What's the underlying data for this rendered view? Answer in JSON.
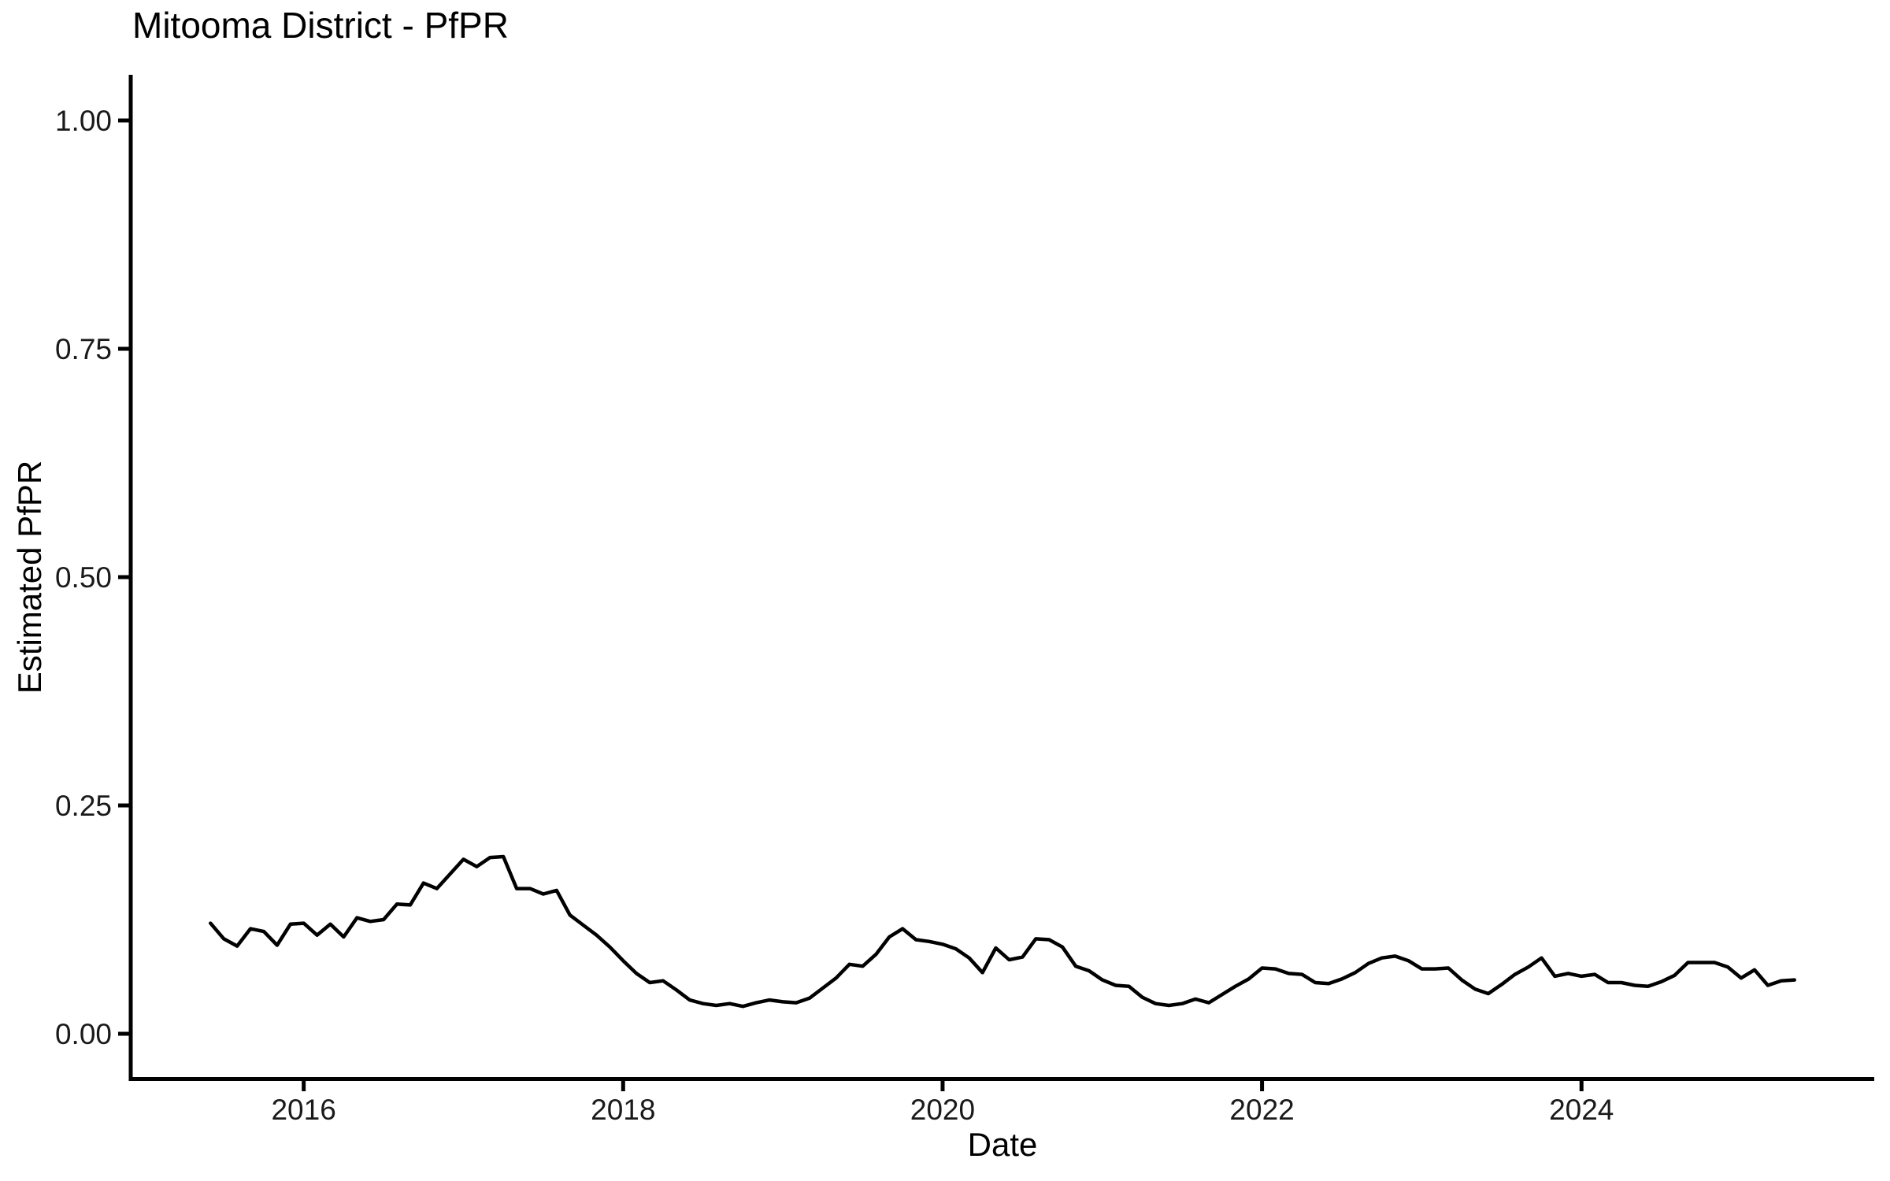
{
  "page": {
    "background": "#ffffff"
  },
  "chart_data": {
    "type": "line",
    "title": "Mitooma District - PfPR",
    "xlabel": "Date",
    "ylabel": "Estimated PfPR",
    "grid": false,
    "legend": false,
    "line_color": "#000000",
    "axis_color": "#000000",
    "x_range_years": [
      2014.917,
      2025.833
    ],
    "y_range": [
      -0.05,
      1.05
    ],
    "ylim": [
      0.0,
      1.0
    ],
    "x_tick_years": [
      2016,
      2018,
      2020,
      2022,
      2024
    ],
    "x_tick_labels": [
      "2016",
      "2018",
      "2020",
      "2022",
      "2024"
    ],
    "y_tick_values": [
      0.0,
      0.25,
      0.5,
      0.75,
      1.0
    ],
    "y_tick_labels": [
      "0.00",
      "0.25",
      "0.50",
      "0.75",
      "1.00"
    ],
    "series": [
      {
        "name": "Estimated PfPR",
        "dates": [
          "2015-06",
          "2015-07",
          "2015-08",
          "2015-09",
          "2015-10",
          "2015-11",
          "2015-12",
          "2016-01",
          "2016-02",
          "2016-03",
          "2016-04",
          "2016-05",
          "2016-06",
          "2016-07",
          "2016-08",
          "2016-09",
          "2016-10",
          "2016-11",
          "2016-12",
          "2017-01",
          "2017-02",
          "2017-03",
          "2017-04",
          "2017-05",
          "2017-06",
          "2017-07",
          "2017-08",
          "2017-09",
          "2017-10",
          "2017-11",
          "2017-12",
          "2018-01",
          "2018-02",
          "2018-03",
          "2018-04",
          "2018-05",
          "2018-06",
          "2018-07",
          "2018-08",
          "2018-09",
          "2018-10",
          "2018-11",
          "2018-12",
          "2019-01",
          "2019-02",
          "2019-03",
          "2019-04",
          "2019-05",
          "2019-06",
          "2019-07",
          "2019-08",
          "2019-09",
          "2019-10",
          "2019-11",
          "2019-12",
          "2020-01",
          "2020-02",
          "2020-03",
          "2020-04",
          "2020-05",
          "2020-06",
          "2020-07",
          "2020-08",
          "2020-09",
          "2020-10",
          "2020-11",
          "2020-12",
          "2021-01",
          "2021-02",
          "2021-03",
          "2021-04",
          "2021-05",
          "2021-06",
          "2021-07",
          "2021-08",
          "2021-09",
          "2021-10",
          "2021-11",
          "2021-12",
          "2022-01",
          "2022-02",
          "2022-03",
          "2022-04",
          "2022-05",
          "2022-06",
          "2022-07",
          "2022-08",
          "2022-09",
          "2022-10",
          "2022-11",
          "2022-12",
          "2023-01",
          "2023-02",
          "2023-03",
          "2023-04",
          "2023-05",
          "2023-06",
          "2023-07",
          "2023-08",
          "2023-09",
          "2023-10",
          "2023-11",
          "2023-12",
          "2024-01",
          "2024-02",
          "2024-03",
          "2024-04",
          "2024-05",
          "2024-06",
          "2024-07",
          "2024-08",
          "2024-09",
          "2024-10",
          "2024-11",
          "2024-12",
          "2025-01",
          "2025-02",
          "2025-03",
          "2025-04",
          "2025-05"
        ],
        "values": [
          0.121,
          0.104,
          0.096,
          0.115,
          0.112,
          0.097,
          0.12,
          0.121,
          0.108,
          0.12,
          0.106,
          0.127,
          0.123,
          0.125,
          0.142,
          0.141,
          0.165,
          0.159,
          0.175,
          0.191,
          0.183,
          0.193,
          0.194,
          0.159,
          0.159,
          0.153,
          0.157,
          0.13,
          0.119,
          0.108,
          0.095,
          0.08,
          0.066,
          0.056,
          0.058,
          0.048,
          0.037,
          0.033,
          0.031,
          0.033,
          0.03,
          0.034,
          0.037,
          0.035,
          0.034,
          0.039,
          0.05,
          0.061,
          0.076,
          0.074,
          0.087,
          0.106,
          0.115,
          0.103,
          0.101,
          0.098,
          0.093,
          0.083,
          0.067,
          0.094,
          0.081,
          0.084,
          0.104,
          0.103,
          0.095,
          0.074,
          0.069,
          0.059,
          0.053,
          0.052,
          0.04,
          0.033,
          0.031,
          0.033,
          0.038,
          0.034,
          0.043,
          0.052,
          0.06,
          0.072,
          0.071,
          0.066,
          0.065,
          0.056,
          0.055,
          0.06,
          0.067,
          0.077,
          0.083,
          0.085,
          0.08,
          0.071,
          0.071,
          0.072,
          0.059,
          0.049,
          0.044,
          0.054,
          0.065,
          0.073,
          0.083,
          0.063,
          0.066,
          0.063,
          0.065,
          0.056,
          0.056,
          0.053,
          0.052,
          0.057,
          0.064,
          0.078,
          0.078,
          0.078,
          0.073,
          0.061,
          0.07,
          0.053,
          0.058,
          0.059
        ]
      }
    ]
  }
}
